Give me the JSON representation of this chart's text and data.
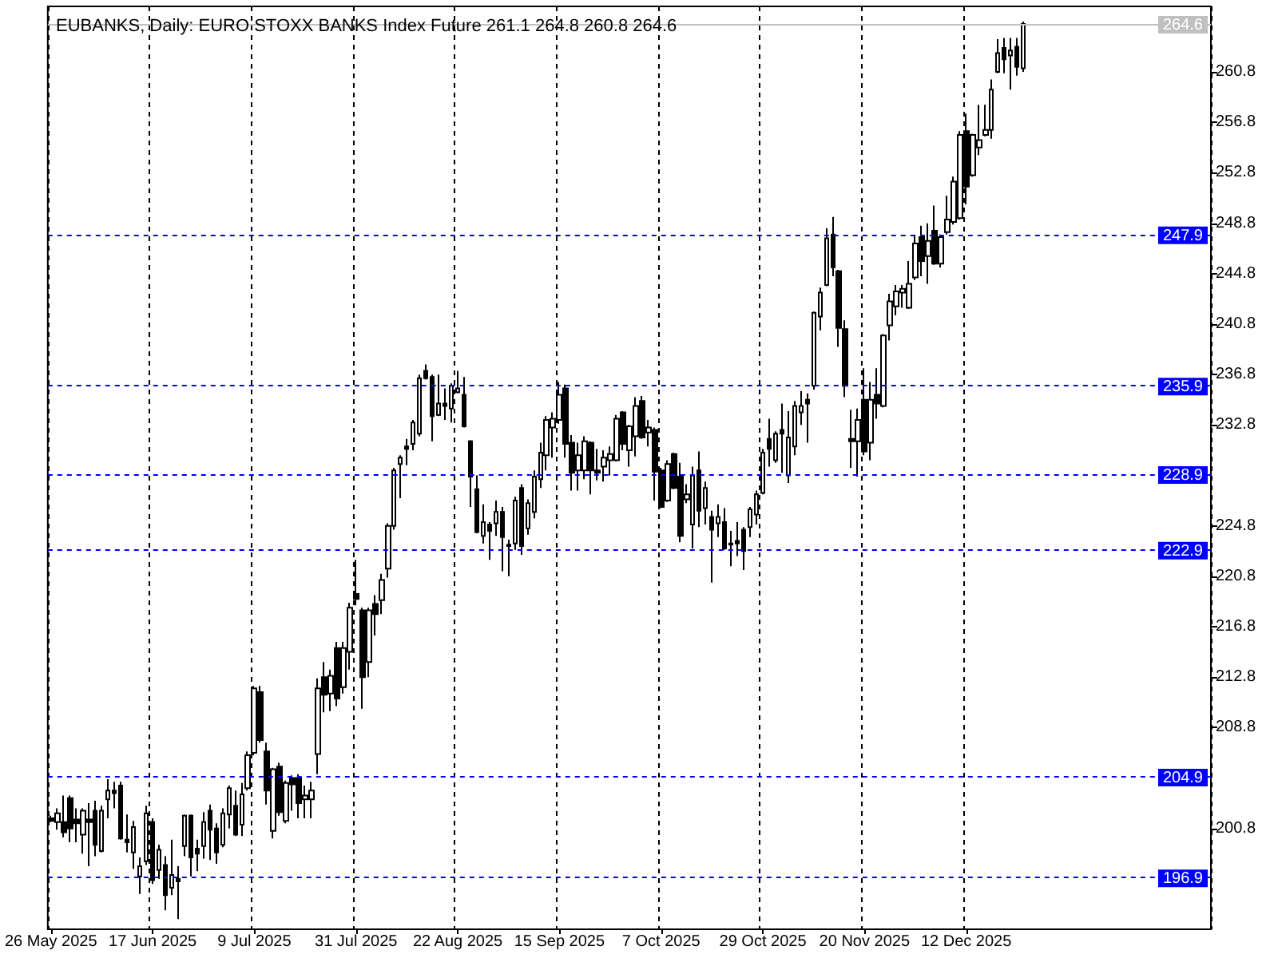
{
  "chart_data": {
    "type": "candlestick",
    "title": "EUBANKS, Daily: EURO STOXX BANKS Index Future 261.1 264.8 260.8 264.6",
    "categories": [
      "26 May 2025",
      null,
      null,
      null,
      null,
      null,
      null,
      null,
      null,
      null,
      null,
      null,
      null,
      null,
      null,
      null,
      "17 Jun 2025",
      null,
      null,
      null,
      null,
      null,
      null,
      null,
      null,
      null,
      null,
      null,
      null,
      null,
      null,
      null,
      "9 Jul 2025",
      null,
      null,
      null,
      null,
      null,
      null,
      null,
      null,
      null,
      null,
      null,
      null,
      null,
      null,
      null,
      "31 Jul 2025",
      null,
      null,
      null,
      null,
      null,
      null,
      null,
      null,
      null,
      null,
      null,
      null,
      null,
      null,
      null,
      "22 Aug 2025",
      null,
      null,
      null,
      null,
      null,
      null,
      null,
      null,
      null,
      null,
      null,
      null,
      null,
      null,
      null,
      "15 Sep 2025",
      null,
      null,
      null,
      null,
      null,
      null,
      null,
      null,
      null,
      null,
      null,
      null,
      null,
      null,
      null,
      "7 Oct 2025",
      null,
      null,
      null,
      null,
      null,
      null,
      null,
      null,
      null,
      null,
      null,
      null,
      null,
      null,
      null,
      "29 Oct 2025",
      null,
      null,
      null,
      null,
      null,
      null,
      null,
      null,
      null,
      null,
      null,
      null,
      null,
      null,
      null,
      "20 Nov 2025",
      null,
      null,
      null,
      null,
      null,
      null,
      null,
      null,
      null,
      null,
      null,
      null,
      null,
      null,
      null,
      "12 Dec 2025",
      null,
      null,
      null,
      null,
      null,
      null,
      null,
      null,
      null,
      null,
      null,
      null,
      null,
      null,
      null,
      null,
      null,
      null,
      null,
      null,
      null,
      null,
      null,
      null,
      null,
      null,
      null,
      null,
      null,
      null,
      null,
      null,
      null,
      null,
      null,
      null,
      null,
      null
    ],
    "ohlc": [
      [
        201.6,
        201.8,
        201.3,
        201.4
      ],
      [
        201.3,
        202.4,
        200.7,
        202.0
      ],
      [
        201.3,
        203.4,
        200.1,
        200.5
      ],
      [
        203.2,
        203.4,
        199.7,
        200.8
      ],
      [
        201.5,
        202.4,
        199.7,
        201.2
      ],
      [
        200.3,
        202.4,
        198.8,
        202.2
      ],
      [
        201.5,
        202.8,
        197.8,
        201.3
      ],
      [
        202.2,
        203.0,
        198.6,
        199.5
      ],
      [
        199.0,
        202.6,
        198.9,
        202.2
      ],
      [
        203.1,
        204.7,
        201.6,
        203.8
      ],
      [
        203.8,
        204.5,
        202.4,
        203.6
      ],
      [
        204.2,
        204.5,
        199.9,
        200.0
      ],
      [
        199.9,
        201.9,
        198.9,
        199.7
      ],
      [
        198.9,
        201.4,
        197.6,
        200.9
      ],
      [
        197.0,
        198.5,
        195.6,
        197.8
      ],
      [
        198.2,
        202.6,
        197.9,
        202.0
      ],
      [
        201.3,
        201.6,
        196.4,
        196.7
      ],
      [
        197.5,
        199.5,
        196.8,
        199.1
      ],
      [
        197.9,
        198.6,
        194.3,
        195.5
      ],
      [
        196.1,
        199.9,
        195.5,
        197.1
      ],
      [
        196.8,
        197.8,
        193.6,
        196.6
      ],
      [
        199.4,
        201.9,
        198.6,
        201.8
      ],
      [
        201.8,
        201.9,
        197.0,
        198.5
      ],
      [
        199.2,
        199.9,
        197.4,
        198.8
      ],
      [
        199.4,
        202.1,
        198.4,
        201.3
      ],
      [
        202.2,
        202.7,
        198.3,
        200.7
      ],
      [
        200.8,
        201.2,
        198.0,
        198.9
      ],
      [
        199.5,
        202.4,
        199.3,
        202.0
      ],
      [
        201.9,
        204.2,
        200.8,
        204.0
      ],
      [
        202.6,
        203.8,
        200.2,
        200.3
      ],
      [
        201.1,
        204.4,
        200.2,
        203.5
      ],
      [
        204.0,
        206.9,
        203.8,
        206.6
      ],
      [
        206.8,
        212.1,
        206.6,
        211.9
      ],
      [
        211.6,
        212.1,
        207.6,
        207.8
      ],
      [
        206.9,
        207.6,
        202.7,
        203.8
      ],
      [
        200.6,
        205.6,
        200.0,
        205.5
      ],
      [
        205.7,
        206.0,
        201.8,
        202.1
      ],
      [
        201.4,
        204.6,
        201.2,
        204.4
      ],
      [
        204.8,
        205.0,
        202.2,
        204.3
      ],
      [
        204.8,
        205.1,
        201.6,
        202.8
      ],
      [
        203.1,
        204.2,
        201.6,
        203.4
      ],
      [
        203.1,
        204.5,
        201.6,
        203.8
      ],
      [
        206.7,
        212.7,
        205.1,
        211.9
      ],
      [
        212.8,
        214.0,
        210.0,
        211.4
      ],
      [
        211.5,
        213.4,
        210.1,
        212.9
      ],
      [
        215.1,
        215.6,
        210.5,
        211.1
      ],
      [
        212.0,
        215.6,
        211.5,
        215.1
      ],
      [
        214.8,
        218.7,
        213.4,
        218.3
      ],
      [
        219.4,
        222.1,
        218.5,
        219.0
      ],
      [
        218.1,
        218.3,
        210.3,
        212.8
      ],
      [
        214.0,
        218.3,
        212.8,
        218.1
      ],
      [
        218.6,
        219.3,
        216.1,
        217.8
      ],
      [
        218.9,
        221.0,
        217.8,
        220.5
      ],
      [
        221.4,
        225.0,
        220.7,
        224.8
      ],
      [
        224.8,
        229.4,
        224.5,
        229.2
      ],
      [
        229.7,
        230.4,
        227.0,
        230.2
      ],
      [
        231.1,
        231.7,
        229.6,
        230.9
      ],
      [
        231.3,
        233.2,
        230.8,
        233.0
      ],
      [
        232.1,
        236.8,
        231.9,
        236.5
      ],
      [
        237.1,
        237.6,
        236.4,
        236.5
      ],
      [
        236.6,
        236.8,
        231.5,
        233.5
      ],
      [
        233.6,
        236.8,
        233.5,
        234.5
      ],
      [
        234.5,
        235.7,
        233.2,
        234.3
      ],
      [
        234.1,
        236.1,
        233.0,
        235.9
      ],
      [
        235.4,
        237.1,
        235.3,
        235.7
      ],
      [
        235.2,
        236.6,
        232.6,
        232.7
      ],
      [
        231.5,
        231.6,
        226.3,
        228.7
      ],
      [
        227.7,
        228.8,
        224.2,
        224.3
      ],
      [
        224.0,
        226.5,
        223.4,
        225.1
      ],
      [
        224.9,
        225.1,
        222.1,
        224.4
      ],
      [
        225.0,
        226.8,
        224.0,
        225.9
      ],
      [
        225.9,
        226.3,
        221.2,
        223.9
      ],
      [
        223.3,
        223.7,
        220.8,
        223.2
      ],
      [
        223.4,
        227.1,
        222.9,
        226.8
      ],
      [
        227.8,
        228.1,
        222.5,
        223.2
      ],
      [
        224.6,
        226.9,
        224.1,
        226.6
      ],
      [
        225.9,
        229.2,
        225.4,
        228.7
      ],
      [
        228.5,
        231.4,
        227.8,
        230.6
      ],
      [
        230.4,
        233.5,
        229.2,
        233.2
      ],
      [
        232.6,
        233.8,
        230.2,
        233.3
      ],
      [
        233.2,
        236.2,
        232.9,
        235.2
      ],
      [
        235.7,
        236.0,
        230.2,
        231.3
      ],
      [
        231.4,
        232.0,
        227.6,
        229.0
      ],
      [
        229.2,
        231.4,
        227.6,
        230.4
      ],
      [
        229.2,
        231.9,
        228.5,
        231.5
      ],
      [
        231.4,
        231.5,
        227.3,
        229.2
      ],
      [
        229.2,
        230.9,
        228.4,
        229.0
      ],
      [
        229.5,
        230.8,
        228.3,
        230.2
      ],
      [
        230.0,
        231.1,
        228.8,
        230.5
      ],
      [
        230.0,
        233.6,
        229.9,
        233.3
      ],
      [
        233.8,
        233.9,
        230.8,
        231.3
      ],
      [
        230.8,
        232.8,
        229.5,
        232.7
      ],
      [
        231.9,
        235.0,
        230.3,
        234.3
      ],
      [
        234.7,
        235.1,
        231.7,
        231.8
      ],
      [
        232.2,
        233.2,
        231.1,
        232.6
      ],
      [
        232.4,
        232.6,
        226.8,
        229.1
      ],
      [
        229.2,
        229.4,
        226.2,
        226.3
      ],
      [
        226.8,
        230.0,
        226.7,
        229.7
      ],
      [
        230.5,
        230.6,
        227.7,
        227.8
      ],
      [
        228.7,
        229.8,
        223.5,
        224.0
      ],
      [
        226.9,
        228.1,
        226.6,
        227.3
      ],
      [
        224.9,
        229.5,
        223.0,
        228.8
      ],
      [
        229.2,
        230.7,
        224.7,
        226.0
      ],
      [
        226.2,
        228.3,
        224.9,
        227.8
      ],
      [
        225.5,
        226.0,
        220.3,
        224.5
      ],
      [
        225.0,
        226.5,
        223.9,
        225.5
      ],
      [
        225.1,
        226.2,
        222.9,
        223.0
      ],
      [
        223.4,
        224.4,
        221.6,
        223.3
      ],
      [
        223.6,
        225.1,
        222.4,
        223.4
      ],
      [
        224.5,
        224.7,
        221.3,
        222.8
      ],
      [
        224.7,
        226.3,
        223.9,
        226.1
      ],
      [
        225.7,
        227.6,
        224.9,
        227.3
      ],
      [
        227.4,
        230.9,
        227.3,
        230.6
      ],
      [
        231.7,
        233.3,
        229.5,
        230.9
      ],
      [
        230.0,
        232.3,
        229.8,
        232.1
      ],
      [
        232.4,
        234.5,
        229.0,
        232.1
      ],
      [
        228.8,
        233.9,
        228.2,
        231.8
      ],
      [
        231.1,
        234.7,
        230.4,
        234.3
      ],
      [
        233.8,
        235.5,
        232.8,
        234.3
      ],
      [
        234.8,
        235.3,
        231.4,
        234.5
      ],
      [
        235.9,
        241.8,
        235.6,
        241.7
      ],
      [
        241.4,
        243.7,
        240.3,
        243.3
      ],
      [
        243.9,
        248.4,
        243.8,
        247.6
      ],
      [
        247.9,
        249.3,
        244.6,
        245.3
      ],
      [
        245.0,
        245.1,
        239.0,
        240.5
      ],
      [
        240.4,
        241.1,
        235.0,
        235.9
      ],
      [
        231.7,
        234.0,
        229.4,
        231.5
      ],
      [
        231.5,
        234.1,
        228.7,
        233.2
      ],
      [
        234.8,
        237.3,
        230.4,
        230.7
      ],
      [
        231.4,
        236.2,
        230.0,
        234.8
      ],
      [
        235.2,
        237.3,
        233.3,
        234.5
      ],
      [
        234.3,
        240.0,
        234.2,
        239.9
      ],
      [
        240.7,
        243.2,
        239.5,
        242.6
      ],
      [
        242.2,
        243.9,
        241.5,
        243.4
      ],
      [
        243.3,
        243.9,
        242.1,
        243.6
      ],
      [
        242.1,
        245.8,
        242.0,
        244.0
      ],
      [
        244.5,
        247.9,
        244.3,
        247.2
      ],
      [
        247.7,
        248.6,
        244.6,
        245.8
      ],
      [
        246.2,
        248.8,
        244.0,
        247.4
      ],
      [
        248.2,
        250.2,
        245.5,
        245.6
      ],
      [
        245.6,
        247.9,
        245.3,
        247.7
      ],
      [
        248.1,
        251.0,
        247.9,
        249.1
      ],
      [
        248.9,
        252.5,
        248.7,
        252.1
      ],
      [
        249.2,
        256.1,
        249.1,
        255.8
      ],
      [
        256.1,
        257.5,
        250.3,
        251.7
      ],
      [
        252.6,
        255.9,
        252.5,
        255.8
      ],
      [
        254.8,
        258.2,
        254.2,
        255.4
      ],
      [
        255.8,
        258.2,
        255.7,
        256.2
      ],
      [
        256.2,
        260.2,
        255.5,
        259.4
      ],
      [
        260.8,
        263.4,
        260.7,
        262.3
      ],
      [
        262.7,
        263.5,
        260.7,
        261.8
      ],
      [
        262.1,
        263.5,
        259.4,
        262.5
      ],
      [
        262.8,
        263.5,
        260.5,
        261.2
      ],
      [
        261.1,
        264.8,
        260.8,
        264.6
      ],
      null,
      null,
      null,
      null,
      null,
      null,
      null,
      null,
      null,
      null,
      null,
      null,
      null,
      null,
      null,
      null,
      null,
      null,
      null,
      null,
      null,
      null,
      null,
      null,
      null,
      null,
      null,
      null,
      null
    ],
    "color": "#000000",
    "ylim": [
      192.8,
      266.0
    ],
    "yticks": [
      200.8,
      208.8,
      212.8,
      216.8,
      220.8,
      224.8,
      232.8,
      236.8,
      240.8,
      244.8,
      248.8,
      252.8,
      256.8,
      260.8
    ],
    "grid": "x",
    "ref_lines": [
      {
        "axis": "y",
        "value": 264.6,
        "label": "264.6",
        "color": "#c0c0c0",
        "line_style": "solid"
      },
      {
        "axis": "y",
        "value": 247.9,
        "label": "247.9",
        "color": "#0000ff",
        "line_style": "dashed"
      },
      {
        "axis": "y",
        "value": 235.9,
        "label": "235.9",
        "color": "#0000ff",
        "line_style": "dashed"
      },
      {
        "axis": "y",
        "value": 228.9,
        "label": "228.9",
        "color": "#0000ff",
        "line_style": "dashed"
      },
      {
        "axis": "y",
        "value": 222.9,
        "label": "222.9",
        "color": "#0000ff",
        "line_style": "dashed"
      },
      {
        "axis": "y",
        "value": 204.9,
        "label": "204.9",
        "color": "#0000ff",
        "line_style": "dashed"
      },
      {
        "axis": "y",
        "value": 196.9,
        "label": "196.9",
        "color": "#0000ff",
        "line_style": "dashed"
      }
    ]
  }
}
